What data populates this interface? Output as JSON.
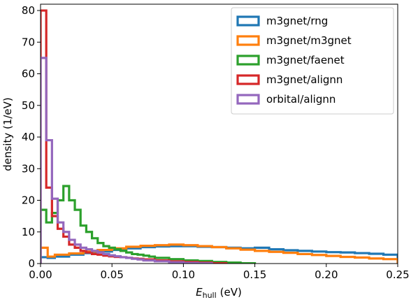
{
  "chart_data": {
    "type": "histogram-step",
    "xlabel_main": "E",
    "xlabel_sub": "hull",
    "xlabel_unit": "(eV)",
    "ylabel": "density (1/eV)",
    "xlim": [
      0,
      0.25
    ],
    "ylim": [
      0,
      82
    ],
    "xticks": [
      "0.00",
      "0.05",
      "0.10",
      "0.15",
      "0.20",
      "0.25"
    ],
    "xtick_values": [
      0,
      0.05,
      0.1,
      0.15,
      0.2,
      0.25
    ],
    "yticks": [
      "0",
      "10",
      "20",
      "30",
      "40",
      "50",
      "60",
      "70",
      "80"
    ],
    "ytick_values": [
      0,
      10,
      20,
      30,
      40,
      50,
      60,
      70,
      80
    ],
    "grid": false,
    "legend_position": "top-right",
    "series": [
      {
        "name": "m3gnet/rng",
        "color": "#1f77b4",
        "edges": [
          0,
          0.005,
          0.01,
          0.02,
          0.03,
          0.04,
          0.05,
          0.06,
          0.07,
          0.08,
          0.09,
          0.1,
          0.11,
          0.12,
          0.13,
          0.14,
          0.15,
          0.16,
          0.17,
          0.18,
          0.19,
          0.2,
          0.21,
          0.22,
          0.23,
          0.24,
          0.25
        ],
        "values": [
          2,
          1.8,
          2.2,
          2.8,
          3.3,
          3.8,
          4.3,
          4.8,
          5.2,
          5.4,
          5.5,
          5.5,
          5.3,
          5.2,
          5.0,
          4.8,
          5.0,
          4.5,
          4.2,
          4.0,
          3.8,
          3.6,
          3.5,
          3.3,
          3.1,
          2.8
        ]
      },
      {
        "name": "m3gnet/m3gnet",
        "color": "#ff7f0e",
        "edges": [
          0,
          0.005,
          0.01,
          0.02,
          0.03,
          0.04,
          0.05,
          0.06,
          0.07,
          0.08,
          0.09,
          0.1,
          0.11,
          0.12,
          0.13,
          0.14,
          0.15,
          0.16,
          0.17,
          0.18,
          0.19,
          0.2,
          0.21,
          0.22,
          0.23,
          0.24,
          0.25
        ],
        "values": [
          5,
          2.2,
          2.8,
          3.2,
          3.8,
          4.3,
          4.8,
          5.3,
          5.6,
          5.8,
          6.0,
          5.8,
          5.5,
          5.2,
          4.8,
          4.4,
          4.0,
          3.7,
          3.4,
          3.0,
          2.7,
          2.4,
          2.1,
          1.9,
          1.6,
          1.4
        ]
      },
      {
        "name": "m3gnet/faenet",
        "color": "#2ca02c",
        "edges": [
          0,
          0.004,
          0.008,
          0.012,
          0.016,
          0.02,
          0.024,
          0.028,
          0.032,
          0.036,
          0.04,
          0.044,
          0.048,
          0.052,
          0.056,
          0.06,
          0.064,
          0.068,
          0.072,
          0.076,
          0.08,
          0.09,
          0.1,
          0.11,
          0.12,
          0.13,
          0.14,
          0.15
        ],
        "values": [
          17,
          13,
          16,
          20,
          24.5,
          20,
          17,
          12,
          10,
          8,
          6.5,
          5.5,
          5,
          4.5,
          4,
          3.5,
          3,
          2.8,
          2.5,
          2.2,
          1.8,
          1.4,
          1.0,
          0.8,
          0.5,
          0.3,
          0.1
        ]
      },
      {
        "name": "m3gnet/alignn",
        "color": "#d62728",
        "edges": [
          0,
          0.004,
          0.008,
          0.012,
          0.016,
          0.02,
          0.024,
          0.028,
          0.032,
          0.036,
          0.04,
          0.044,
          0.048,
          0.052,
          0.056,
          0.06,
          0.064,
          0.068,
          0.072,
          0.08,
          0.09,
          0.1,
          0.11,
          0.12,
          0.13
        ],
        "values": [
          80,
          24,
          15,
          11,
          8.5,
          6,
          5,
          4,
          3.5,
          3,
          2.8,
          2.5,
          2.3,
          2.1,
          2.0,
          1.8,
          1.6,
          1.5,
          1.3,
          1.0,
          0.7,
          0.5,
          0.3,
          0.1
        ]
      },
      {
        "name": "orbital/alignn",
        "color": "#9467bd",
        "edges": [
          0,
          0.004,
          0.008,
          0.012,
          0.016,
          0.02,
          0.024,
          0.028,
          0.032,
          0.036,
          0.04,
          0.044,
          0.048,
          0.052,
          0.056,
          0.06,
          0.064,
          0.068,
          0.072,
          0.08,
          0.09,
          0.1,
          0.11,
          0.12
        ],
        "values": [
          65,
          39,
          20.5,
          13,
          10,
          7.5,
          6,
          5,
          4.5,
          4,
          3.5,
          3,
          2.6,
          2.3,
          2.0,
          1.8,
          1.5,
          1.3,
          1.0,
          0.7,
          0.4,
          0.2,
          0.1
        ]
      }
    ]
  }
}
